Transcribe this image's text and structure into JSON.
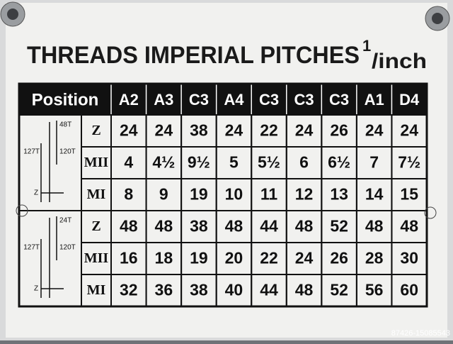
{
  "title": {
    "main": "THREADS IMPERIAL  PITCHES",
    "numerator": "1",
    "unit": "/inch"
  },
  "table": {
    "header": [
      "Position",
      "A2",
      "A3",
      "C3",
      "A4",
      "C3",
      "C3",
      "C3",
      "A1",
      "D4"
    ],
    "groups": [
      {
        "diagram": {
          "top": "48T",
          "left": "127T",
          "right": "120T",
          "bottom": "Z"
        },
        "rows": [
          {
            "label": "Z",
            "values": [
              "24",
              "24",
              "38",
              "24",
              "22",
              "24",
              "26",
              "24",
              "24"
            ]
          },
          {
            "label": "MII",
            "values": [
              "4",
              "4½",
              "9½",
              "5",
              "5½",
              "6",
              "6½",
              "7",
              "7½"
            ]
          },
          {
            "label": "MI",
            "values": [
              "8",
              "9",
              "19",
              "10",
              "11",
              "12",
              "13",
              "14",
              "15"
            ]
          }
        ]
      },
      {
        "diagram": {
          "top": "24T",
          "left": "127T",
          "right": "120T",
          "bottom": "Z"
        },
        "rows": [
          {
            "label": "Z",
            "values": [
              "48",
              "48",
              "38",
              "48",
              "44",
              "48",
              "52",
              "48",
              "48"
            ]
          },
          {
            "label": "MII",
            "values": [
              "16",
              "18",
              "19",
              "20",
              "22",
              "24",
              "26",
              "28",
              "30"
            ]
          },
          {
            "label": "MI",
            "values": [
              "32",
              "36",
              "38",
              "40",
              "44",
              "48",
              "52",
              "56",
              "60"
            ]
          }
        ]
      }
    ]
  },
  "watermark": "87426-15085543"
}
